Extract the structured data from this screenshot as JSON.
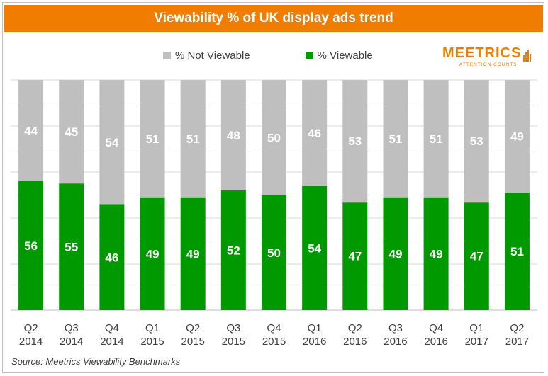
{
  "title": "Viewability % of UK display ads trend",
  "source": "Source: Meetrics Viewability Benchmarks",
  "logo": {
    "name": "MEETRICS",
    "tagline": "ATTENTION COUNTS"
  },
  "colors": {
    "accent": "#f07d00",
    "viewable": "#009a00",
    "not_viewable": "#bfbfbf"
  },
  "chart_data": {
    "type": "bar",
    "stacked": true,
    "categories": [
      "Q2 2014",
      "Q3 2014",
      "Q4 2014",
      "Q1 2015",
      "Q2 2015",
      "Q3 2015",
      "Q4 2015",
      "Q1 2016",
      "Q2 2016",
      "Q3 2016",
      "Q4 2016",
      "Q1 2017",
      "Q2 2017"
    ],
    "category_lines": [
      [
        "Q2",
        "2014"
      ],
      [
        "Q3",
        "2014"
      ],
      [
        "Q4",
        "2014"
      ],
      [
        "Q1",
        "2015"
      ],
      [
        "Q2",
        "2015"
      ],
      [
        "Q3",
        "2015"
      ],
      [
        "Q4",
        "2015"
      ],
      [
        "Q1",
        "2016"
      ],
      [
        "Q2",
        "2016"
      ],
      [
        "Q3",
        "2016"
      ],
      [
        "Q4",
        "2016"
      ],
      [
        "Q1",
        "2017"
      ],
      [
        "Q2",
        "2017"
      ]
    ],
    "series": [
      {
        "name": "% Viewable",
        "color": "#009a00",
        "values": [
          56,
          55,
          46,
          49,
          49,
          52,
          50,
          54,
          47,
          49,
          49,
          47,
          51
        ]
      },
      {
        "name": "% Not Viewable",
        "color": "#bfbfbf",
        "values": [
          44,
          45,
          54,
          51,
          51,
          48,
          50,
          46,
          53,
          51,
          51,
          53,
          49
        ]
      }
    ],
    "legend_order": [
      "% Not Viewable",
      "% Viewable"
    ],
    "ylim": [
      0,
      100
    ],
    "grid": true,
    "legend_position": "top"
  }
}
